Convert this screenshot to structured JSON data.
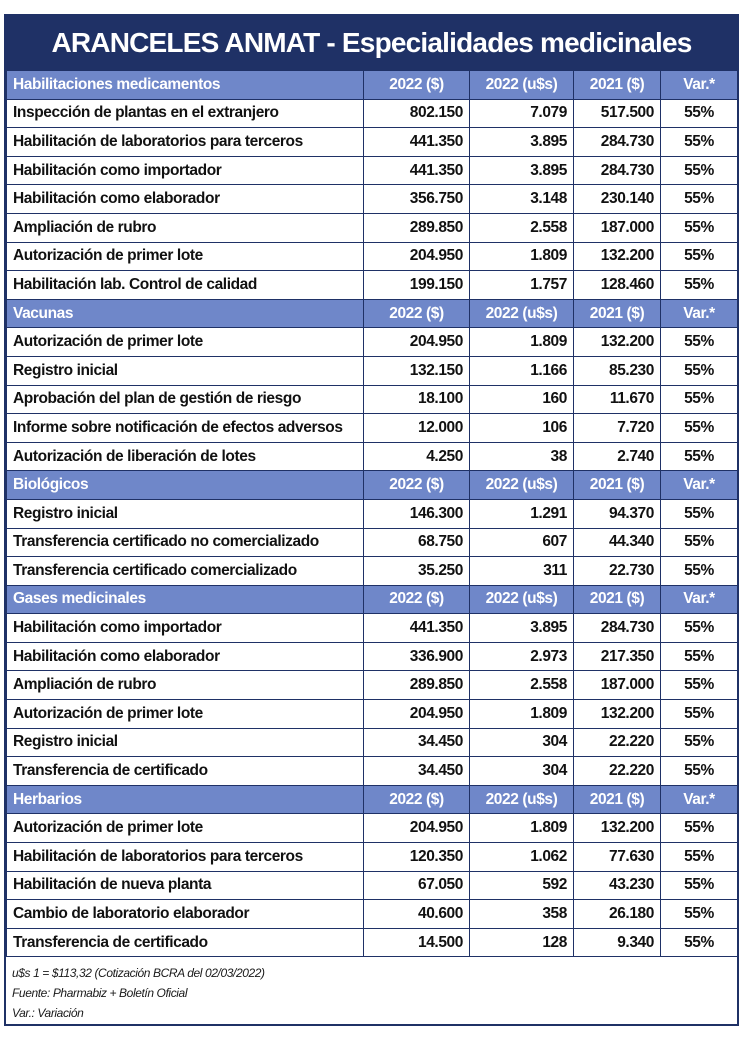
{
  "title": "ARANCELES ANMAT - Especialidades medicinales",
  "sections": [
    {
      "name": "Habilitaciones medicamentos",
      "headers": [
        "2022 ($)",
        "2022 (u$s)",
        "2021 ($)",
        "Var.*"
      ],
      "rows": [
        {
          "label": "Inspección de plantas en el extranjero",
          "v2022": "802.150",
          "usd": "7.079",
          "v2021": "517.500",
          "var": "55%"
        },
        {
          "label": "Habilitación de laboratorios para terceros",
          "v2022": "441.350",
          "usd": "3.895",
          "v2021": "284.730",
          "var": "55%"
        },
        {
          "label": "Habilitación como importador",
          "v2022": "441.350",
          "usd": "3.895",
          "v2021": "284.730",
          "var": "55%"
        },
        {
          "label": "Habilitación como elaborador",
          "v2022": "356.750",
          "usd": "3.148",
          "v2021": "230.140",
          "var": "55%"
        },
        {
          "label": "Ampliación de rubro",
          "v2022": "289.850",
          "usd": "2.558",
          "v2021": "187.000",
          "var": "55%"
        },
        {
          "label": "Autorización de primer lote",
          "v2022": "204.950",
          "usd": "1.809",
          "v2021": "132.200",
          "var": "55%"
        },
        {
          "label": "Habilitación lab. Control de calidad",
          "v2022": "199.150",
          "usd": "1.757",
          "v2021": "128.460",
          "var": "55%"
        }
      ]
    },
    {
      "name": "Vacunas",
      "headers": [
        "2022 ($)",
        "2022 (u$s)",
        "2021 ($)",
        "Var.*"
      ],
      "rows": [
        {
          "label": "Autorización de primer lote",
          "v2022": "204.950",
          "usd": "1.809",
          "v2021": "132.200",
          "var": "55%"
        },
        {
          "label": "Registro inicial",
          "v2022": "132.150",
          "usd": "1.166",
          "v2021": "85.230",
          "var": "55%"
        },
        {
          "label": "Aprobación del plan de gestión de riesgo",
          "v2022": "18.100",
          "usd": "160",
          "v2021": "11.670",
          "var": "55%"
        },
        {
          "label": "Informe sobre notificación de efectos adversos",
          "v2022": "12.000",
          "usd": "106",
          "v2021": "7.720",
          "var": "55%"
        },
        {
          "label": "Autorización de liberación de lotes",
          "v2022": "4.250",
          "usd": "38",
          "v2021": "2.740",
          "var": "55%"
        }
      ]
    },
    {
      "name": "Biológicos",
      "headers": [
        "2022 ($)",
        "2022 (u$s)",
        "2021 ($)",
        "Var.*"
      ],
      "rows": [
        {
          "label": "Registro inicial",
          "v2022": "146.300",
          "usd": "1.291",
          "v2021": "94.370",
          "var": "55%"
        },
        {
          "label": "Transferencia certificado no comercializado",
          "v2022": "68.750",
          "usd": "607",
          "v2021": "44.340",
          "var": "55%"
        },
        {
          "label": "Transferencia certificado comercializado",
          "v2022": "35.250",
          "usd": "311",
          "v2021": "22.730",
          "var": "55%"
        }
      ]
    },
    {
      "name": "Gases medicinales",
      "headers": [
        "2022 ($)",
        "2022 (u$s)",
        "2021 ($)",
        "Var.*"
      ],
      "rows": [
        {
          "label": "Habilitación como importador",
          "v2022": "441.350",
          "usd": "3.895",
          "v2021": "284.730",
          "var": "55%"
        },
        {
          "label": "Habilitación como elaborador",
          "v2022": "336.900",
          "usd": "2.973",
          "v2021": "217.350",
          "var": "55%"
        },
        {
          "label": "Ampliación de rubro",
          "v2022": "289.850",
          "usd": "2.558",
          "v2021": "187.000",
          "var": "55%"
        },
        {
          "label": "Autorización de primer lote",
          "v2022": "204.950",
          "usd": "1.809",
          "v2021": "132.200",
          "var": "55%"
        },
        {
          "label": "Registro inicial",
          "v2022": "34.450",
          "usd": "304",
          "v2021": "22.220",
          "var": "55%"
        },
        {
          "label": "Transferencia de certificado",
          "v2022": "34.450",
          "usd": "304",
          "v2021": "22.220",
          "var": "55%"
        }
      ]
    },
    {
      "name": "Herbarios",
      "headers": [
        "2022 ($)",
        "2022 (u$s)",
        "2021 ($)",
        "Var.*"
      ],
      "rows": [
        {
          "label": "Autorización de primer lote",
          "v2022": "204.950",
          "usd": "1.809",
          "v2021": "132.200",
          "var": "55%"
        },
        {
          "label": "Habilitación de laboratorios para terceros",
          "v2022": "120.350",
          "usd": "1.062",
          "v2021": "77.630",
          "var": "55%"
        },
        {
          "label": "Habilitación de nueva planta",
          "v2022": "67.050",
          "usd": "592",
          "v2021": "43.230",
          "var": "55%"
        },
        {
          "label": "Cambio de laboratorio elaborador",
          "v2022": "40.600",
          "usd": "358",
          "v2021": "26.180",
          "var": "55%"
        },
        {
          "label": "Transferencia de certificado",
          "v2022": "14.500",
          "usd": "128",
          "v2021": "9.340",
          "var": "55%"
        }
      ]
    }
  ],
  "footer": {
    "exchange_note": "u$s 1 = $113,32 (Cotización BCRA del 02/03/2022)",
    "source": "Fuente: Pharmabiz + Boletín Oficial",
    "legend": "Var.: Variación"
  },
  "colors": {
    "title_bg": "#1f3166",
    "section_bg": "#6f87c9",
    "border": "#1f3166"
  }
}
